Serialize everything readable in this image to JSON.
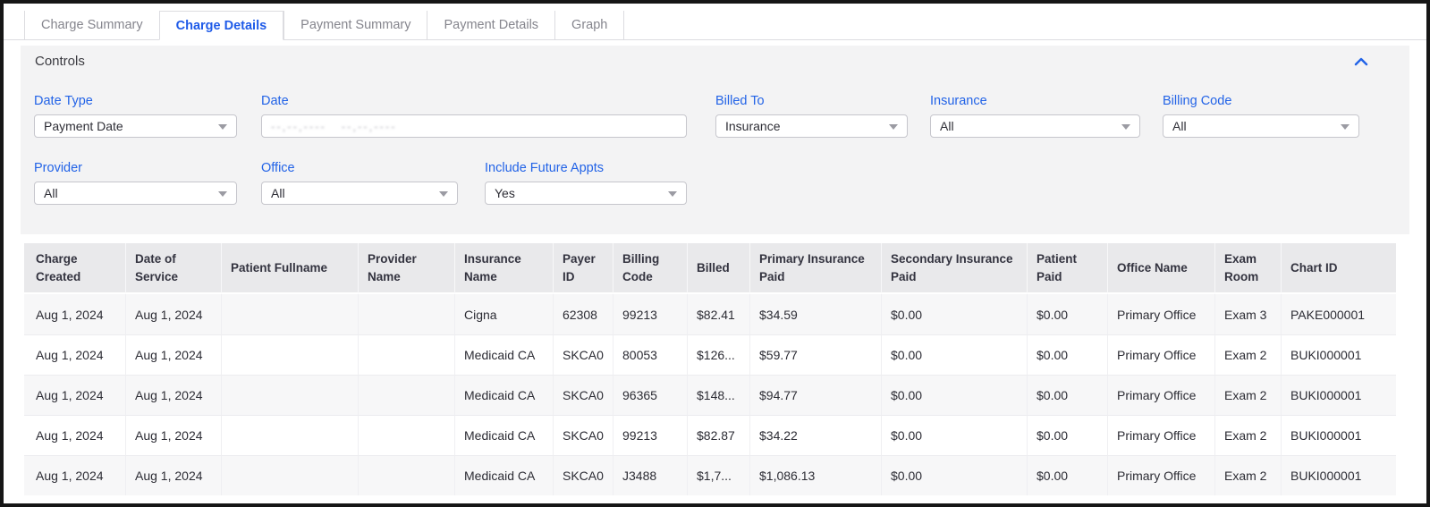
{
  "tabs": [
    {
      "label": "Charge Summary",
      "active": false
    },
    {
      "label": "Charge Details",
      "active": true
    },
    {
      "label": "Payment Summary",
      "active": false
    },
    {
      "label": "Payment Details",
      "active": false
    },
    {
      "label": "Graph",
      "active": false
    }
  ],
  "annotation": {
    "type": "red-arrow-pointing-to-charge-details-tab",
    "color": "#ef3b2a"
  },
  "controls": {
    "title": "Controls",
    "collapse_icon": "chevron-up-icon",
    "filters": {
      "date_type": {
        "label": "Date Type",
        "value": "Payment Date"
      },
      "date": {
        "label": "Date",
        "value_redacted": "--,--,----   --,--,----"
      },
      "billed_to": {
        "label": "Billed To",
        "value": "Insurance"
      },
      "insurance": {
        "label": "Insurance",
        "value": "All"
      },
      "billing_code": {
        "label": "Billing Code",
        "value": "All"
      },
      "provider": {
        "label": "Provider",
        "value": "All"
      },
      "office": {
        "label": "Office",
        "value": "All"
      },
      "include_future_appts": {
        "label": "Include Future Appts",
        "value": "Yes"
      }
    }
  },
  "table": {
    "columns": [
      "Charge Created",
      "Date of Service",
      "Patient Fullname",
      "Provider Name",
      "Insurance Name",
      "Payer ID",
      "Billing Code",
      "Billed",
      "Primary Insurance Paid",
      "Secondary Insurance Paid",
      "Patient Paid",
      "Office Name",
      "Exam Room",
      "Chart ID"
    ],
    "rows": [
      [
        "Aug 1, 2024",
        "Aug 1, 2024",
        "",
        "",
        "Cigna",
        "62308",
        "99213",
        "$82.41",
        "$34.59",
        "$0.00",
        "$0.00",
        "Primary Office",
        "Exam 3",
        "PAKE000001"
      ],
      [
        "Aug 1, 2024",
        "Aug 1, 2024",
        "",
        "",
        "Medicaid CA",
        "SKCA0",
        "80053",
        "$126...",
        "$59.77",
        "$0.00",
        "$0.00",
        "Primary Office",
        "Exam 2",
        "BUKI000001"
      ],
      [
        "Aug 1, 2024",
        "Aug 1, 2024",
        "",
        "",
        "Medicaid CA",
        "SKCA0",
        "96365",
        "$148...",
        "$94.77",
        "$0.00",
        "$0.00",
        "Primary Office",
        "Exam 2",
        "BUKI000001"
      ],
      [
        "Aug 1, 2024",
        "Aug 1, 2024",
        "",
        "",
        "Medicaid CA",
        "SKCA0",
        "99213",
        "$82.87",
        "$34.22",
        "$0.00",
        "$0.00",
        "Primary Office",
        "Exam 2",
        "BUKI000001"
      ],
      [
        "Aug 1, 2024",
        "Aug 1, 2024",
        "",
        "",
        "Medicaid CA",
        "SKCA0",
        "J3488",
        "$1,7...",
        "$1,086.13",
        "$0.00",
        "$0.00",
        "Primary Office",
        "Exam 2",
        "BUKI000001"
      ]
    ]
  },
  "colors": {
    "accent_blue": "#2263e7",
    "active_tab_blue": "#1f5be8",
    "arrow_red": "#ef3b2a",
    "panel_bg": "#f3f3f4",
    "header_bg": "#e9e9eb",
    "alt_row_bg": "#f7f7f8"
  }
}
